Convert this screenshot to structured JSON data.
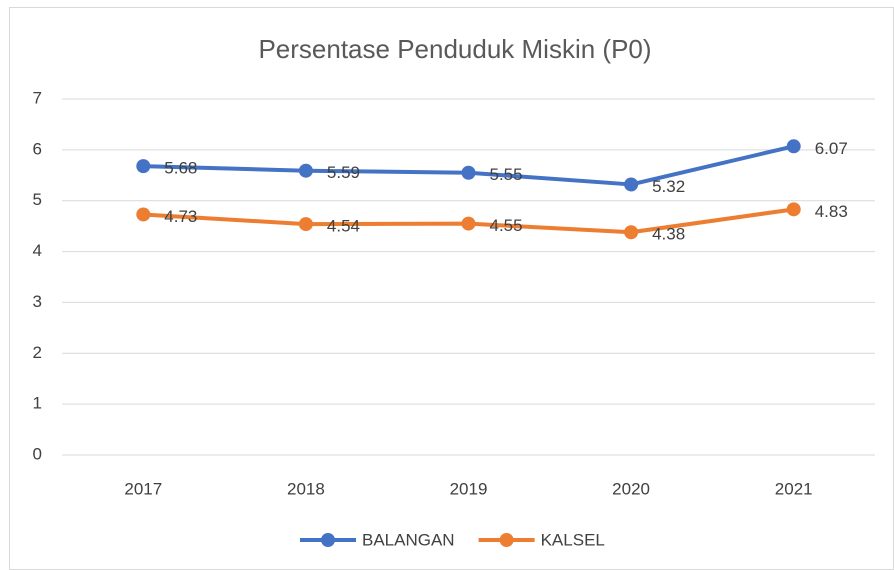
{
  "chart_data": {
    "type": "line",
    "title": "Persentase Penduduk Miskin (P0)",
    "categories": [
      "2017",
      "2018",
      "2019",
      "2020",
      "2021"
    ],
    "series": [
      {
        "name": "BALANGAN",
        "color": "#4472c4",
        "values": [
          5.68,
          5.59,
          5.55,
          5.32,
          6.07
        ]
      },
      {
        "name": "KALSEL",
        "color": "#ed7d31",
        "values": [
          4.73,
          4.54,
          4.55,
          4.38,
          4.83
        ]
      }
    ],
    "ylim": [
      0,
      7
    ],
    "yticks": [
      0,
      1,
      2,
      3,
      4,
      5,
      6,
      7
    ],
    "grid": true,
    "legend": "bottom"
  }
}
